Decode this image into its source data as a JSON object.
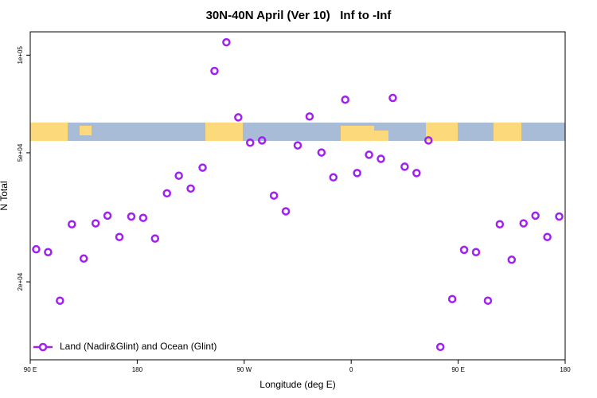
{
  "chart_data": {
    "type": "scatter",
    "title": "30N-40N April (Ver 10)   Inf to -Inf",
    "x_label": "Longitude (deg E)",
    "y_label": "N Total",
    "x": [
      95,
      105,
      115,
      125,
      135,
      145,
      155,
      165,
      175,
      185,
      195,
      205,
      215,
      225,
      235,
      245,
      255,
      265,
      275,
      285,
      295,
      305,
      315,
      325,
      335,
      345,
      355,
      365,
      375,
      385,
      395,
      405,
      415,
      425,
      435,
      445,
      455,
      465,
      475,
      485,
      495,
      505,
      515,
      525,
      535
    ],
    "series": [
      {
        "name": "Land (Nadir&Glint) and Ocean (Glint)",
        "color": "#a020f0",
        "values": [
          25200,
          24700,
          17500,
          30100,
          23600,
          30300,
          32000,
          27500,
          31800,
          31500,
          27200,
          37500,
          42500,
          38800,
          45000,
          89400,
          109600,
          64300,
          53700,
          54600,
          36900,
          33000,
          52700,
          64700,
          50100,
          42000,
          72900,
          43300,
          49300,
          47900,
          73800,
          45300,
          43300,
          54600,
          12600,
          17700,
          25100,
          24700,
          17500,
          30100,
          23400,
          30300,
          32000,
          27500,
          31800
        ]
      }
    ],
    "xlim": [
      90,
      540
    ],
    "xticks": [
      {
        "value": 90,
        "label": "90 E"
      },
      180,
      {
        "value": 270,
        "label": "90 W"
      },
      {
        "value": 360,
        "label": "0"
      },
      {
        "value": 450,
        "label": "90 E"
      },
      {
        "value": 540,
        "label": "180"
      }
    ],
    "ylim": [
      11500,
      118000
    ],
    "ylog": true,
    "yticks": [
      {
        "value": 20000,
        "label": "2e+04"
      },
      {
        "value": 50000,
        "label": "5e+04"
      },
      {
        "value": 100000,
        "label": "1e+05"
      }
    ],
    "legend": "bottom-left"
  }
}
